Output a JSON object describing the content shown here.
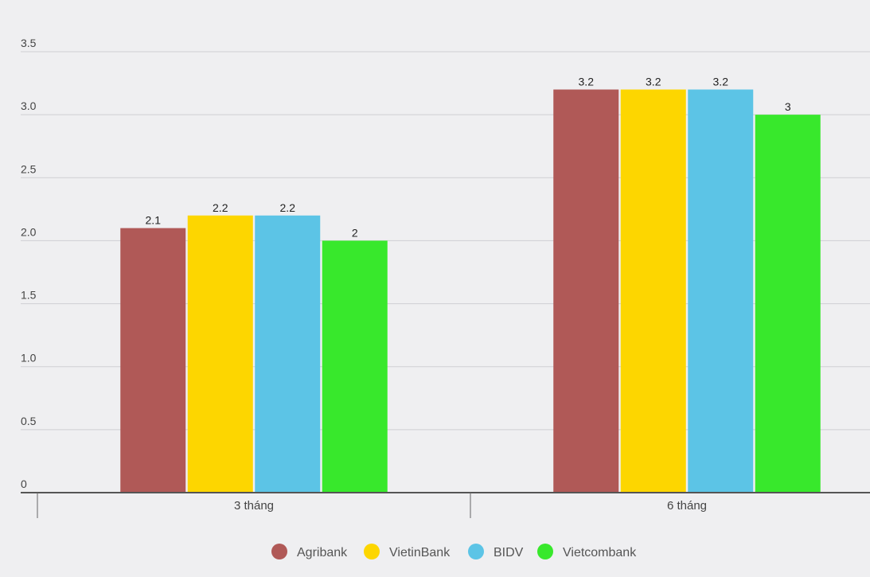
{
  "chart_data": {
    "type": "bar",
    "title": "",
    "xlabel": "",
    "ylabel": "",
    "categories": [
      "3 tháng",
      "6 tháng"
    ],
    "series": [
      {
        "name": "Agribank",
        "color": "#b05957",
        "values": [
          2.1,
          3.2
        ]
      },
      {
        "name": "VietinBank",
        "color": "#fdd600",
        "values": [
          2.2,
          3.2
        ]
      },
      {
        "name": "BIDV",
        "color": "#5cc4e6",
        "values": [
          2.2,
          3.2
        ]
      },
      {
        "name": "Vietcombank",
        "color": "#38e82c",
        "values": [
          2,
          3
        ]
      }
    ],
    "data_labels": [
      [
        "2.1",
        "3.2"
      ],
      [
        "2.2",
        "3.2"
      ],
      [
        "2.2",
        "3.2"
      ],
      [
        "2",
        "3"
      ]
    ],
    "ylim": [
      0,
      3.5
    ],
    "yticks": [
      "0",
      "0.5",
      "1.0",
      "1.5",
      "2.0",
      "2.5",
      "3.0",
      "3.5"
    ],
    "grid": true,
    "legend": "bottom-center"
  }
}
